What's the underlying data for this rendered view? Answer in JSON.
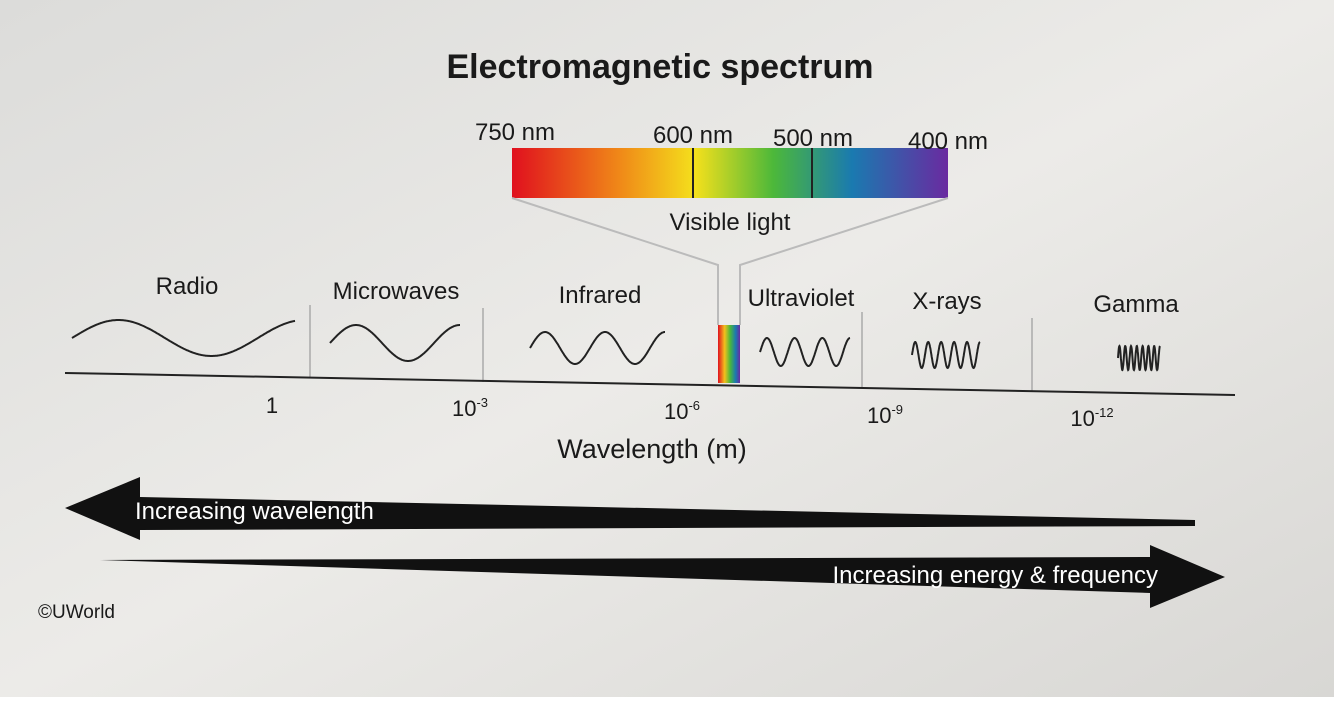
{
  "title": "Electromagnetic spectrum",
  "visible_light": {
    "wavelengths": [
      "750 nm",
      "600 nm",
      "500 nm",
      "400 nm"
    ],
    "label": "Visible light"
  },
  "regions": [
    "Radio",
    "Microwaves",
    "Infrared",
    "Ultraviolet",
    "X-rays",
    "Gamma"
  ],
  "axis": {
    "ticks": [
      {
        "base": "1"
      },
      {
        "base": "10",
        "exp": "-3"
      },
      {
        "base": "10",
        "exp": "-6"
      },
      {
        "base": "10",
        "exp": "-9"
      },
      {
        "base": "10",
        "exp": "-12"
      }
    ],
    "label": "Wavelength (m)"
  },
  "arrows": {
    "left": "Increasing wavelength",
    "right": "Increasing energy & frequency"
  },
  "copyright": "©UWorld"
}
